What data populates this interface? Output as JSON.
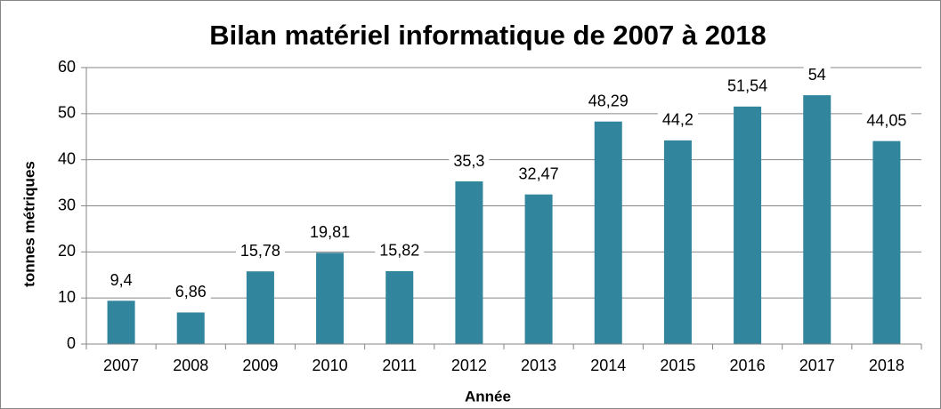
{
  "chart_data": {
    "type": "bar",
    "title": "Bilan matériel informatique de 2007 à 2018",
    "x_label": "Année",
    "y_label": "tonnes métriques",
    "categories": [
      "2007",
      "2008",
      "2009",
      "2010",
      "2011",
      "2012",
      "2013",
      "2014",
      "2015",
      "2016",
      "2017",
      "2018"
    ],
    "values": [
      9.4,
      6.86,
      15.78,
      19.81,
      15.82,
      35.3,
      32.47,
      48.29,
      44.2,
      51.54,
      54,
      44.05
    ],
    "value_labels": [
      "9,4",
      "6,86",
      "15,78",
      "19,81",
      "15,82",
      "35,3",
      "32,47",
      "48,29",
      "44,2",
      "51,54",
      "54",
      "44,05"
    ],
    "color": "#31859c",
    "ylim": [
      0,
      60
    ],
    "yticks": [
      0,
      10,
      20,
      30,
      40,
      50,
      60
    ],
    "grid": true
  }
}
